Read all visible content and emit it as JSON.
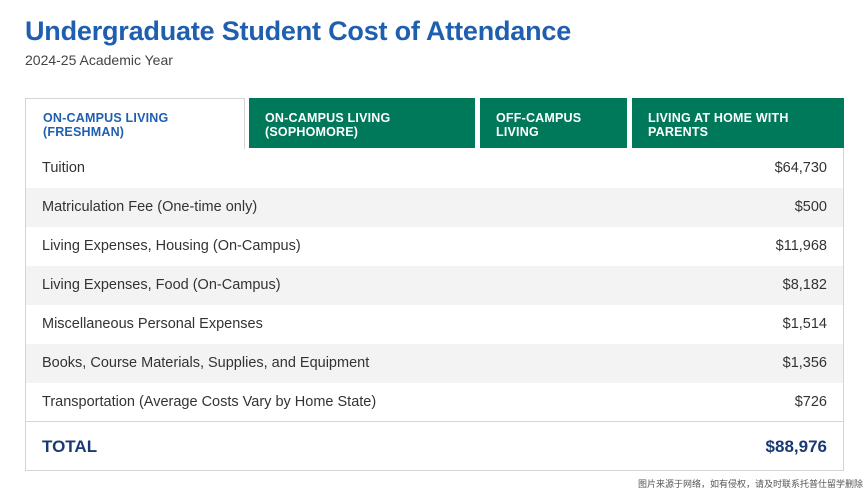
{
  "header": {
    "title": "Undergraduate Student Cost of Attendance",
    "subtitle": "2024-25 Academic Year"
  },
  "tabs": [
    {
      "line1": "ON-CAMPUS LIVING",
      "line2": "(FRESHMAN)",
      "active": true
    },
    {
      "line1": "ON-CAMPUS LIVING",
      "line2": "(SOPHOMORE)",
      "active": false
    },
    {
      "line1": "OFF-CAMPUS",
      "line2": "LIVING",
      "active": false
    },
    {
      "line1": "LIVING AT HOME WITH",
      "line2": "PARENTS",
      "active": false
    }
  ],
  "rows": [
    {
      "label": "Tuition",
      "value": "$64,730"
    },
    {
      "label": "Matriculation Fee (One-time only)",
      "value": "$500"
    },
    {
      "label": "Living Expenses, Housing (On-Campus)",
      "value": "$11,968"
    },
    {
      "label": "Living Expenses, Food (On-Campus)",
      "value": "$8,182"
    },
    {
      "label": "Miscellaneous Personal Expenses",
      "value": "$1,514"
    },
    {
      "label": "Books, Course Materials, Supplies, and Equipment",
      "value": "$1,356"
    },
    {
      "label": "Transportation (Average Costs Vary by Home State)",
      "value": "$726"
    }
  ],
  "total": {
    "label": "TOTAL",
    "value": "$88,976"
  },
  "watermark": "图片来源于网络，如有侵权，请及时联系托普仕留学删除",
  "colors": {
    "title_blue": "#1f5fb0",
    "tab_green": "#00795a",
    "total_navy": "#1b3a73",
    "row_alt": "#f3f3f3"
  }
}
